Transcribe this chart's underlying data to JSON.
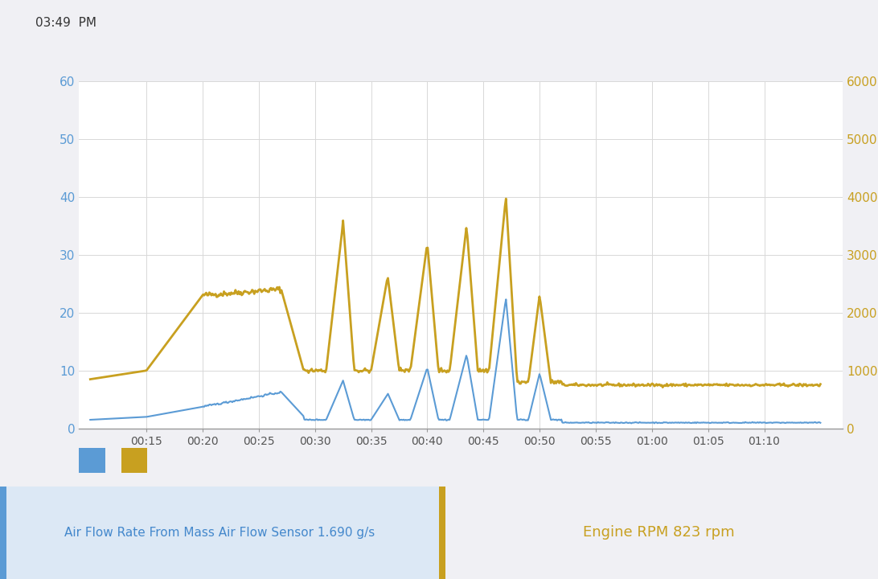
{
  "bg_color": "#f0f0f4",
  "chart_bg": "#ffffff",
  "blue_color": "#5b9bd5",
  "yellow_color": "#c8a020",
  "left_yticks": [
    0,
    10,
    20,
    30,
    40,
    50,
    60
  ],
  "right_yticks": [
    0,
    1000,
    2000,
    3000,
    4000,
    5000,
    6000
  ],
  "left_ylim": [
    0,
    60
  ],
  "right_ylim": [
    0,
    6000
  ],
  "xtick_positions": [
    5,
    10,
    15,
    20,
    25,
    30,
    35,
    40,
    45,
    50,
    55,
    60
  ],
  "xtick_labels": [
    "00:15",
    "00:20",
    "00:25",
    "00:30",
    "00:35",
    "00:40",
    "00:45",
    "00:50",
    "00:55",
    "01:00",
    "01:05",
    "01:10"
  ],
  "legend_blue_label": "Air Flow Rate From Mass Air Flow Sensor 1.690 g/s",
  "legend_yellow_label": "Engine RPM 823 rpm",
  "footer_blue_bg": "#dce8f5",
  "footer_yellow_bg": "#f5f5f5",
  "footer_blue_text_color": "#4488cc",
  "footer_yellow_text_color": "#c8a020",
  "footer_blue_accent": "#5b9bd5",
  "footer_yellow_accent": "#c8a020"
}
